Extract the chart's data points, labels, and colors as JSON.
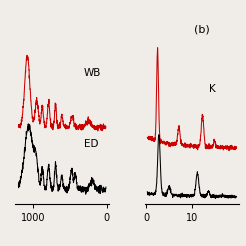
{
  "fig_width": 2.46,
  "fig_height": 2.46,
  "dpi": 100,
  "bg_color": "#f0ece8",
  "panel_a": {
    "xticks": [
      1000,
      0
    ],
    "xticklabels": [
      "1000",
      "0"
    ],
    "label_WB": "WB",
    "label_ED": "ED",
    "red_color": "#cc0000",
    "black_color": "#000000"
  },
  "panel_b": {
    "label": "(b)",
    "xticks": [
      0,
      10
    ],
    "xticklabels": [
      "0",
      "10"
    ],
    "label_K": "K",
    "red_color": "#cc0000",
    "black_color": "#000000"
  }
}
